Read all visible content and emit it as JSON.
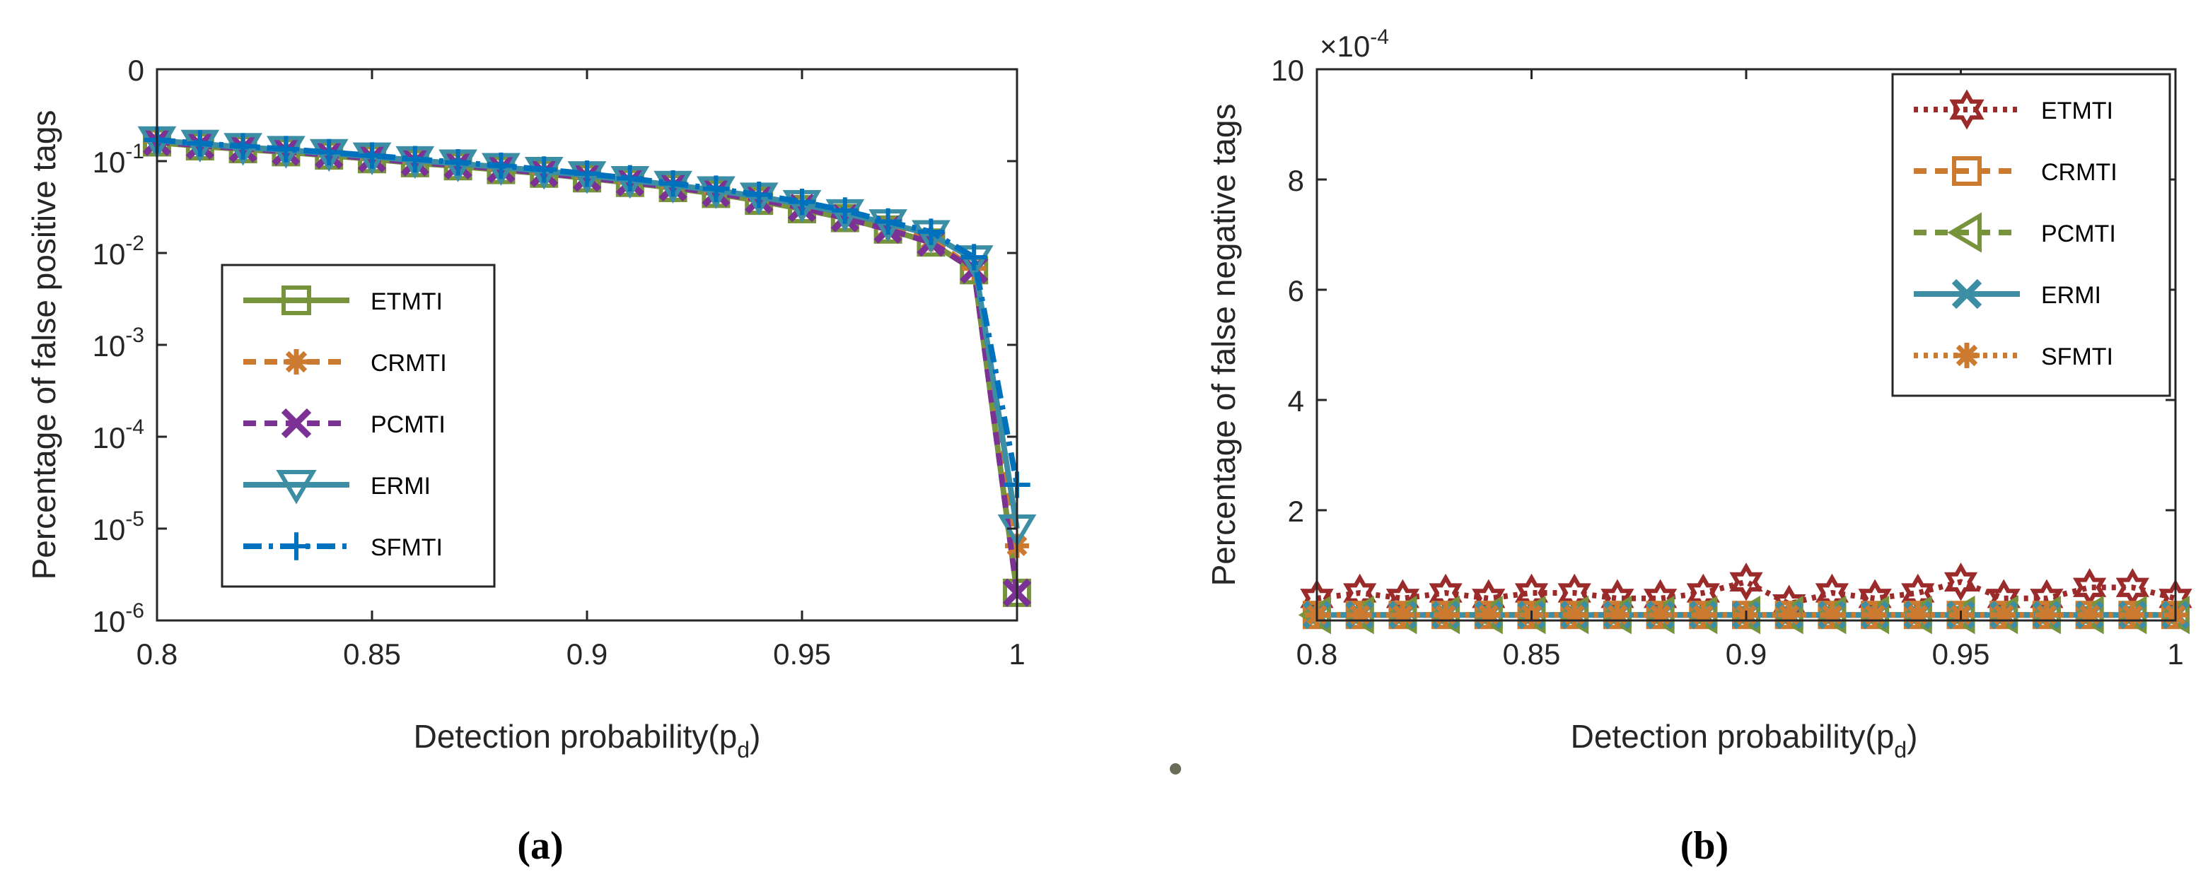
{
  "chart_data": [
    {
      "id": "a",
      "type": "line",
      "panel_label": "(a)",
      "xlabel": "Detection probability(p",
      "xlabel_sub": "d",
      "xlabel_close": ")",
      "ylabel": "Percentage of false positive tags",
      "yscale": "log",
      "xlim": [
        0.8,
        1.0
      ],
      "xticks": [
        "0.8",
        "0.85",
        "0.9",
        "0.95",
        "1"
      ],
      "yticks": [
        {
          "base": "0",
          "exp": ""
        },
        {
          "base": "10",
          "exp": "-1"
        },
        {
          "base": "10",
          "exp": "-2"
        },
        {
          "base": "10",
          "exp": "-3"
        },
        {
          "base": "10",
          "exp": "-4"
        },
        {
          "base": "10",
          "exp": "-5"
        },
        {
          "base": "10",
          "exp": "-6"
        }
      ],
      "legend_position": "center-left",
      "x": [
        0.8,
        0.81,
        0.82,
        0.83,
        0.84,
        0.85,
        0.86,
        0.87,
        0.88,
        0.89,
        0.9,
        0.91,
        0.92,
        0.93,
        0.94,
        0.95,
        0.96,
        0.97,
        0.98,
        0.99,
        1.0
      ],
      "series": [
        {
          "name": "ETMTI",
          "color": "#77933c",
          "dash": "",
          "marker": "square",
          "values": [
            0.16,
            0.145,
            0.135,
            0.125,
            0.115,
            0.105,
            0.095,
            0.088,
            0.08,
            0.073,
            0.065,
            0.058,
            0.051,
            0.044,
            0.037,
            0.03,
            0.024,
            0.018,
            0.013,
            0.0065,
            2e-06
          ]
        },
        {
          "name": "CRMTI",
          "color": "#cc7a30",
          "dash": "18,12",
          "marker": "asterisk",
          "values": [
            0.165,
            0.15,
            0.14,
            0.13,
            0.12,
            0.11,
            0.1,
            0.092,
            0.084,
            0.076,
            0.068,
            0.06,
            0.053,
            0.046,
            0.039,
            0.032,
            0.025,
            0.019,
            0.014,
            0.0068,
            6.5e-06
          ]
        },
        {
          "name": "PCMTI",
          "color": "#7b3294",
          "dash": "18,12",
          "marker": "x",
          "values": [
            0.162,
            0.148,
            0.137,
            0.127,
            0.117,
            0.107,
            0.097,
            0.09,
            0.082,
            0.074,
            0.066,
            0.059,
            0.052,
            0.045,
            0.038,
            0.031,
            0.024,
            0.018,
            0.013,
            0.0066,
            2e-06
          ]
        },
        {
          "name": "ERMI",
          "color": "#3c8ea4",
          "dash": "",
          "marker": "triangle-down",
          "values": [
            0.168,
            0.154,
            0.142,
            0.132,
            0.122,
            0.112,
            0.102,
            0.094,
            0.086,
            0.078,
            0.07,
            0.062,
            0.055,
            0.048,
            0.041,
            0.034,
            0.027,
            0.021,
            0.016,
            0.0085,
            1e-05
          ]
        },
        {
          "name": "SFMTI",
          "color": "#0072bd",
          "dash": "26,10,6,10",
          "marker": "plus",
          "values": [
            0.17,
            0.156,
            0.145,
            0.135,
            0.125,
            0.115,
            0.105,
            0.097,
            0.089,
            0.081,
            0.073,
            0.065,
            0.057,
            0.05,
            0.043,
            0.036,
            0.029,
            0.022,
            0.017,
            0.009,
            3e-05
          ]
        }
      ]
    },
    {
      "id": "b",
      "type": "line",
      "panel_label": "(b)",
      "xlabel": "Detection probability(p",
      "xlabel_sub": "d",
      "xlabel_close": ")",
      "ylabel": "Percentage of false negative tags",
      "yscale": "linear",
      "scale_note_base": "×10",
      "scale_note_exp": "-4",
      "xlim": [
        0.8,
        1.0
      ],
      "ylim": [
        0,
        10
      ],
      "xticks": [
        "0.8",
        "0.85",
        "0.9",
        "0.95",
        "1"
      ],
      "yticks": [
        "2",
        "4",
        "6",
        "8",
        "10"
      ],
      "legend_position": "top-right",
      "x": [
        0.8,
        0.81,
        0.82,
        0.83,
        0.84,
        0.85,
        0.86,
        0.87,
        0.88,
        0.89,
        0.9,
        0.91,
        0.92,
        0.93,
        0.94,
        0.95,
        0.96,
        0.97,
        0.98,
        0.99,
        1.0
      ],
      "series": [
        {
          "name": "ETMTI",
          "color": "#9b2b2b",
          "dash": "6,8",
          "marker": "hexagram",
          "values": [
            0.4,
            0.5,
            0.4,
            0.5,
            0.4,
            0.5,
            0.5,
            0.4,
            0.4,
            0.5,
            0.7,
            0.3,
            0.5,
            0.4,
            0.5,
            0.7,
            0.4,
            0.4,
            0.6,
            0.6,
            0.4
          ]
        },
        {
          "name": "CRMTI",
          "color": "#cc7a30",
          "dash": "18,12",
          "marker": "square",
          "values": [
            0,
            0,
            0,
            0,
            0,
            0,
            0,
            0,
            0,
            0,
            0,
            0,
            0,
            0,
            0,
            0,
            0,
            0,
            0,
            0,
            0
          ]
        },
        {
          "name": "PCMTI",
          "color": "#77933c",
          "dash": "18,12",
          "marker": "triangle-left",
          "values": [
            0,
            0,
            0,
            0,
            0,
            0,
            0,
            0,
            0,
            0,
            0,
            0,
            0,
            0,
            0,
            0,
            0,
            0,
            0,
            0,
            0
          ]
        },
        {
          "name": "ERMI",
          "color": "#3c8ea4",
          "dash": "",
          "marker": "x",
          "values": [
            0,
            0,
            0,
            0,
            0,
            0,
            0,
            0,
            0,
            0,
            0,
            0,
            0,
            0,
            0,
            0,
            0,
            0,
            0,
            0,
            0
          ]
        },
        {
          "name": "SFMTI",
          "color": "#cc7a30",
          "dash": "6,8",
          "marker": "asterisk",
          "values": [
            0,
            0,
            0,
            0,
            0,
            0,
            0,
            0,
            0,
            0,
            0,
            0,
            0,
            0,
            0,
            0,
            0,
            0,
            0,
            0,
            0
          ]
        }
      ]
    }
  ]
}
